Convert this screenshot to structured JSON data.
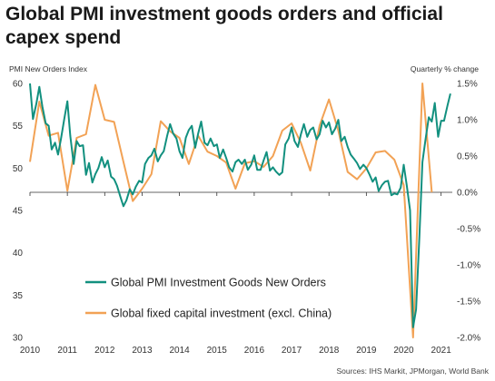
{
  "header": {
    "title": "Global PMI investment goods orders and official capex spend"
  },
  "footer": {
    "source": "Sources: IHS Markit, JPMorgan, World Bank"
  },
  "colors": {
    "pmi": "#12907f",
    "capex": "#f2a255",
    "axis": "#333333"
  },
  "chart_data": {
    "type": "line",
    "title": "Global PMI investment goods orders and official capex spend",
    "legend_position": "bottom-left",
    "grid": false,
    "x_axis": {
      "ticks": [
        "2010",
        "2011",
        "2012",
        "2013",
        "2014",
        "2015",
        "2016",
        "2017",
        "2018",
        "2019",
        "2020",
        "2021"
      ],
      "range": [
        2010.0,
        2021.3
      ]
    },
    "y_left": {
      "label": "PMI New Orders Index",
      "range": [
        30,
        60
      ],
      "ticks": [
        "30",
        "35",
        "40",
        "45",
        "50",
        "55",
        "60"
      ]
    },
    "y_right": {
      "label": "Quarterly % change",
      "range": [
        -2.0,
        1.5
      ],
      "ticks": [
        "-2.0%",
        "-1.5%",
        "-1.0%",
        "-0.5%",
        "0.0%",
        "0.5%",
        "1.0%",
        "1.5%"
      ]
    },
    "series": [
      {
        "name": "Global PMI Investment Goods New Orders",
        "axis": "left",
        "color": "#12907f",
        "x": [
          2010.0,
          2010.08,
          2010.17,
          2010.25,
          2010.33,
          2010.42,
          2010.5,
          2010.58,
          2010.67,
          2010.75,
          2010.83,
          2010.92,
          2011.0,
          2011.08,
          2011.17,
          2011.25,
          2011.33,
          2011.42,
          2011.5,
          2011.58,
          2011.67,
          2011.75,
          2011.83,
          2011.92,
          2012.0,
          2012.08,
          2012.17,
          2012.25,
          2012.33,
          2012.42,
          2012.5,
          2012.58,
          2012.67,
          2012.75,
          2012.83,
          2012.92,
          2013.0,
          2013.08,
          2013.17,
          2013.25,
          2013.33,
          2013.42,
          2013.5,
          2013.58,
          2013.67,
          2013.75,
          2013.83,
          2013.92,
          2014.0,
          2014.08,
          2014.17,
          2014.25,
          2014.33,
          2014.42,
          2014.5,
          2014.58,
          2014.67,
          2014.75,
          2014.83,
          2014.92,
          2015.0,
          2015.08,
          2015.17,
          2015.25,
          2015.33,
          2015.42,
          2015.5,
          2015.58,
          2015.67,
          2015.75,
          2015.83,
          2015.92,
          2016.0,
          2016.08,
          2016.17,
          2016.25,
          2016.33,
          2016.42,
          2016.5,
          2016.58,
          2016.67,
          2016.75,
          2016.83,
          2016.92,
          2017.0,
          2017.08,
          2017.17,
          2017.25,
          2017.33,
          2017.42,
          2017.5,
          2017.58,
          2017.67,
          2017.75,
          2017.83,
          2017.92,
          2018.0,
          2018.08,
          2018.17,
          2018.25,
          2018.33,
          2018.42,
          2018.5,
          2018.58,
          2018.67,
          2018.75,
          2018.83,
          2018.92,
          2019.0,
          2019.08,
          2019.17,
          2019.25,
          2019.33,
          2019.42,
          2019.5,
          2019.58,
          2019.67,
          2019.75,
          2019.83,
          2019.92,
          2020.0,
          2020.08,
          2020.17,
          2020.25,
          2020.33,
          2020.42,
          2020.5,
          2020.58,
          2020.67,
          2020.75,
          2020.83,
          2020.92,
          2021.0,
          2021.08,
          2021.17,
          2021.25
        ],
        "values": [
          60.0,
          55.8,
          57.6,
          59.6,
          57.3,
          55.3,
          55.0,
          52.2,
          53.0,
          51.6,
          53.5,
          55.9,
          57.9,
          53.8,
          50.5,
          53.2,
          52.6,
          52.7,
          49.2,
          50.6,
          48.3,
          49.3,
          50.0,
          51.3,
          50.1,
          50.9,
          49.0,
          48.7,
          47.9,
          46.6,
          45.5,
          46.2,
          47.5,
          46.9,
          47.8,
          48.5,
          48.3,
          50.5,
          51.2,
          51.5,
          52.3,
          50.8,
          51.5,
          52.0,
          53.8,
          55.2,
          54.1,
          53.5,
          52.0,
          51.2,
          53.6,
          54.5,
          55.0,
          52.4,
          54.1,
          55.5,
          53.0,
          52.7,
          53.5,
          52.6,
          52.8,
          51.2,
          52.2,
          51.2,
          50.1,
          49.6,
          50.7,
          51.0,
          50.5,
          51.0,
          49.8,
          50.4,
          51.5,
          49.8,
          49.8,
          50.9,
          51.9,
          49.7,
          50.1,
          49.6,
          49.2,
          49.5,
          52.8,
          53.5,
          54.8,
          53.2,
          52.5,
          54.0,
          55.2,
          53.7,
          54.5,
          54.8,
          53.4,
          54.0,
          55.6,
          54.8,
          55.4,
          54.0,
          54.7,
          55.7,
          53.2,
          53.7,
          52.5,
          51.6,
          51.1,
          50.6,
          49.9,
          50.4,
          50.0,
          49.3,
          48.4,
          48.9,
          47.3,
          48.0,
          48.4,
          48.5,
          46.8,
          47.0,
          46.9,
          47.7,
          50.4,
          48.0,
          45.0,
          31.2,
          33.3,
          42.0,
          50.7,
          53.3,
          56.0,
          55.5,
          57.7,
          53.7,
          55.6,
          55.6,
          57.4,
          58.8
        ]
      },
      {
        "name": "Global fixed capital investment (excl. China)",
        "axis": "right",
        "color": "#f2a255",
        "x": [
          2010.0,
          2010.25,
          2010.5,
          2010.75,
          2011.0,
          2011.25,
          2011.5,
          2011.75,
          2012.0,
          2012.25,
          2012.5,
          2012.75,
          2013.0,
          2013.25,
          2013.5,
          2013.75,
          2014.0,
          2014.25,
          2014.5,
          2014.75,
          2015.0,
          2015.25,
          2015.5,
          2015.75,
          2016.0,
          2016.25,
          2016.5,
          2016.75,
          2017.0,
          2017.25,
          2017.5,
          2017.75,
          2018.0,
          2018.25,
          2018.5,
          2018.75,
          2019.0,
          2019.25,
          2019.5,
          2019.75,
          2020.0,
          2020.25,
          2020.5,
          2020.75
        ],
        "values": [
          0.42,
          1.25,
          0.78,
          0.82,
          0.02,
          0.75,
          0.8,
          1.48,
          1.0,
          0.97,
          0.42,
          -0.12,
          0.05,
          0.25,
          0.98,
          0.84,
          0.75,
          0.39,
          0.78,
          0.56,
          0.5,
          0.41,
          0.05,
          0.4,
          0.43,
          0.35,
          0.5,
          0.85,
          0.95,
          0.68,
          0.3,
          0.92,
          1.28,
          0.85,
          0.28,
          0.18,
          0.33,
          0.55,
          0.57,
          0.45,
          0.1,
          -2.0,
          1.5,
          0.0
        ]
      }
    ]
  }
}
